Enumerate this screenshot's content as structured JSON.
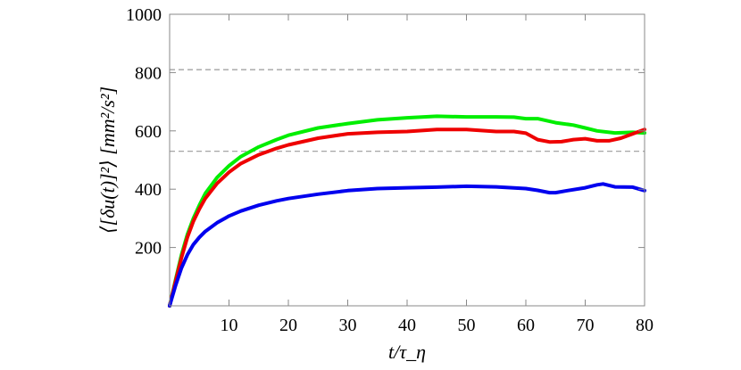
{
  "chart_data": {
    "type": "line",
    "xlabel": "t/τ_η",
    "ylabel": "⟨[δu(t)]²⟩ [mm²/s²]",
    "xlim": [
      0,
      80
    ],
    "ylim": [
      0,
      1000
    ],
    "xticks": [
      10,
      20,
      30,
      40,
      50,
      60,
      70,
      80
    ],
    "yticks": [
      200,
      400,
      600,
      800,
      1000
    ],
    "reference_lines": [
      810,
      530
    ],
    "grid": false,
    "series": [
      {
        "color": "#00ee00",
        "x": [
          0,
          1,
          2,
          3,
          4,
          5,
          6,
          8,
          10,
          12,
          15,
          18,
          20,
          25,
          30,
          35,
          40,
          45,
          50,
          55,
          58,
          60,
          62,
          65,
          68,
          70,
          72,
          75,
          78,
          80
        ],
        "values": [
          0,
          90,
          175,
          245,
          300,
          345,
          385,
          440,
          480,
          512,
          545,
          570,
          585,
          610,
          625,
          638,
          645,
          650,
          648,
          648,
          647,
          642,
          642,
          628,
          620,
          610,
          600,
          593,
          595,
          593
        ]
      },
      {
        "color": "#ee0000",
        "x": [
          0,
          1,
          2,
          3,
          4,
          5,
          6,
          8,
          10,
          12,
          15,
          18,
          20,
          25,
          30,
          35,
          40,
          45,
          50,
          55,
          58,
          60,
          62,
          64,
          66,
          68,
          70,
          72,
          74,
          76,
          78,
          80
        ],
        "values": [
          0,
          85,
          165,
          235,
          290,
          332,
          368,
          420,
          458,
          488,
          518,
          540,
          552,
          575,
          590,
          595,
          598,
          605,
          605,
          598,
          598,
          592,
          570,
          562,
          563,
          570,
          573,
          566,
          566,
          575,
          590,
          605
        ]
      },
      {
        "color": "#0000ee",
        "x": [
          0,
          1,
          2,
          3,
          4,
          5,
          6,
          8,
          10,
          12,
          15,
          18,
          20,
          25,
          30,
          35,
          40,
          45,
          50,
          55,
          60,
          62,
          64,
          65,
          67,
          70,
          72,
          73,
          75,
          78,
          80
        ],
        "values": [
          0,
          70,
          130,
          175,
          210,
          235,
          255,
          285,
          308,
          325,
          345,
          360,
          368,
          383,
          395,
          402,
          405,
          407,
          410,
          408,
          402,
          396,
          388,
          388,
          395,
          405,
          415,
          418,
          408,
          407,
          395
        ]
      }
    ]
  }
}
